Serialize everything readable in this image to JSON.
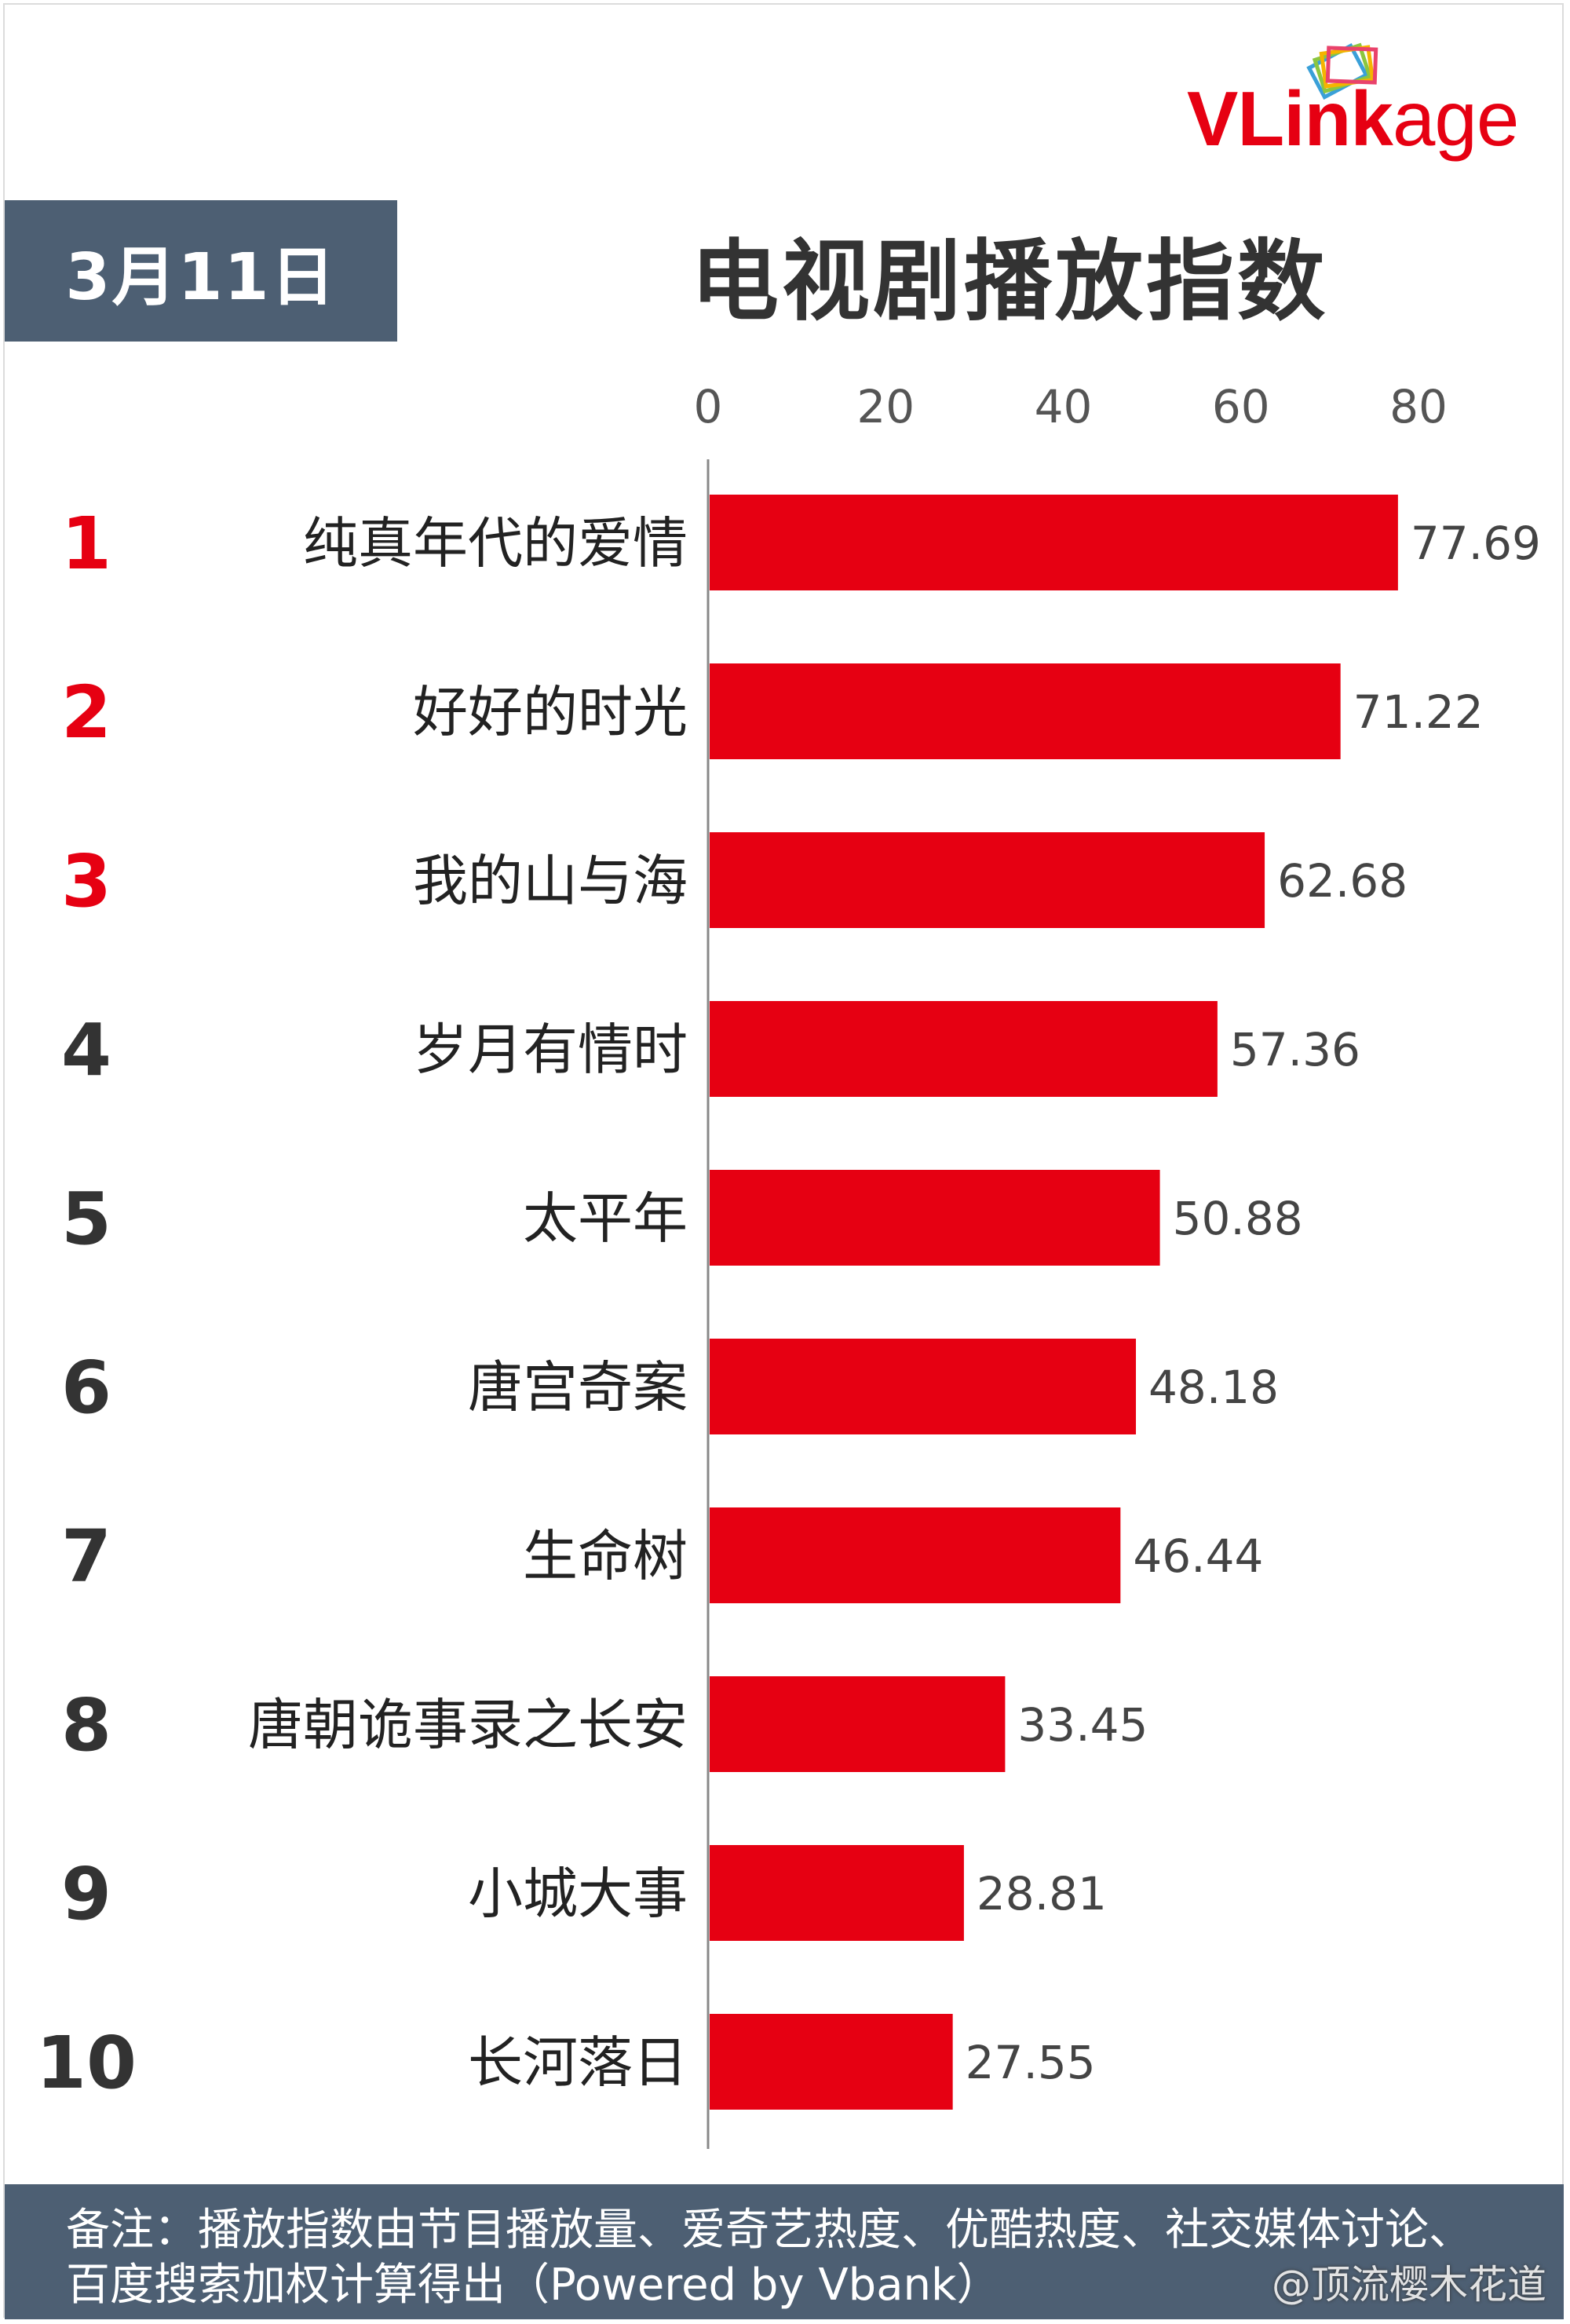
{
  "brand": {
    "logo_text_v": "VL",
    "logo_text_ink": "ink",
    "logo_text_age": "age",
    "accent_color": "#e60012"
  },
  "header": {
    "date": "3月11日",
    "title": "电视剧播放指数"
  },
  "colors": {
    "bar": "#e60012",
    "top_rank": "#e60012",
    "rank": "#333333",
    "panel": "#4d5f73"
  },
  "chart_data": {
    "type": "bar",
    "orientation": "horizontal",
    "title": "电视剧播放指数",
    "ranks": [
      "1",
      "2",
      "3",
      "4",
      "5",
      "6",
      "7",
      "8",
      "9",
      "10"
    ],
    "categories": [
      "纯真年代的爱情",
      "好好的时光",
      "我的山与海",
      "岁月有情时",
      "太平年",
      "唐宫奇案",
      "生命树",
      "唐朝诡事录之长安",
      "小城大事",
      "长河落日"
    ],
    "values": [
      77.69,
      71.22,
      62.68,
      57.36,
      50.88,
      48.18,
      46.44,
      33.45,
      28.81,
      27.55
    ],
    "value_labels": [
      "77.69",
      "71.22",
      "62.68",
      "57.36",
      "50.88",
      "48.18",
      "46.44",
      "33.45",
      "28.81",
      "27.55"
    ],
    "xticks": [
      "0",
      "20",
      "40",
      "60",
      "80"
    ],
    "xlim": [
      0,
      80
    ],
    "xaxis_position": "top",
    "grid": false,
    "legend": "none",
    "highlighted_ranks": 3
  },
  "footer": {
    "note": "备注：播放指数由节目播放量、爱奇艺热度、优酷热度、社交媒体讨论、百度搜索加权计算得出（Powered by Vbank）",
    "watermark": "@顶流樱木花道"
  }
}
